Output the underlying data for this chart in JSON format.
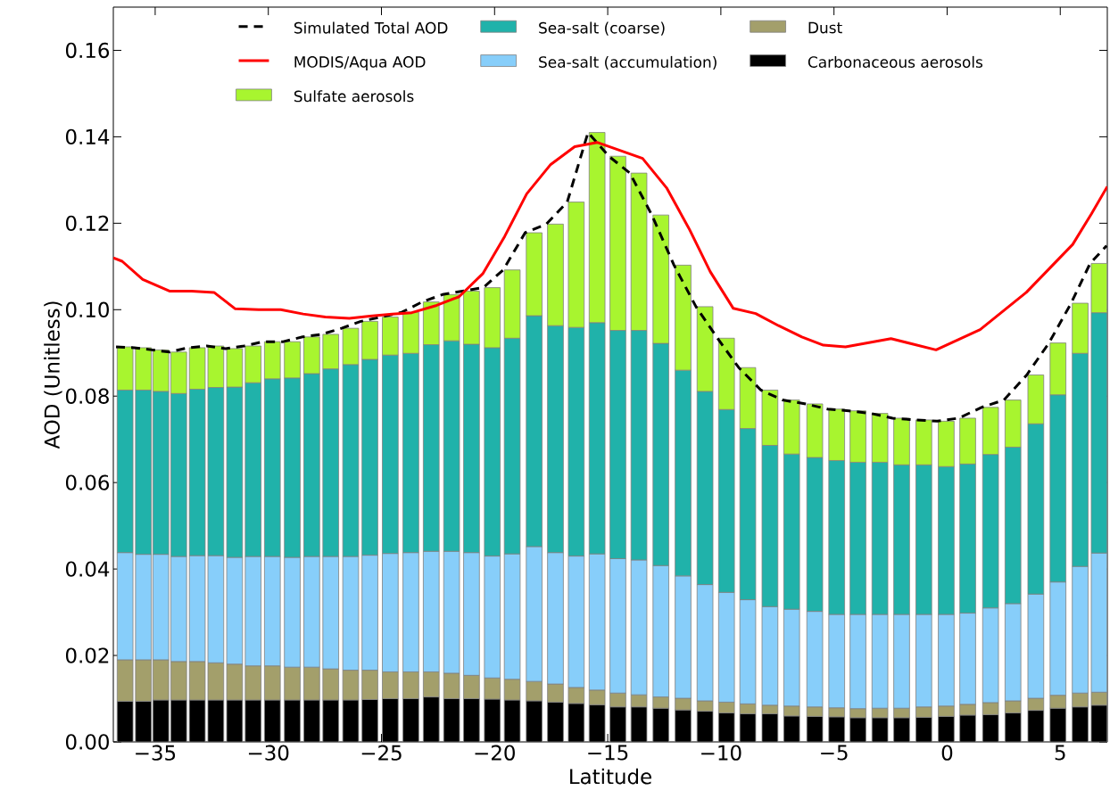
{
  "chart_data": {
    "type": "bar",
    "stacked": true,
    "xlabel": "Latitude",
    "ylabel": "AOD (Unitless)",
    "legend": "top",
    "x": [
      -36.33,
      -35.52,
      -34.75,
      -33.96,
      -33.14,
      -32.32,
      -31.49,
      -30.67,
      -29.82,
      -28.94,
      -28.08,
      -27.24,
      -26.36,
      -25.51,
      -24.61,
      -23.7,
      -22.8,
      -21.9,
      -21.02,
      -20.1,
      -19.22,
      -18.25,
      -17.31,
      -16.39,
      -15.47,
      -14.55,
      -13.62,
      -12.65,
      -11.67,
      -10.7,
      -9.75,
      -8.81,
      -7.83,
      -6.87,
      -5.85,
      -4.88,
      -3.94,
      -2.97,
      -2.01,
      -1.03,
      -0.04,
      0.91,
      1.92,
      2.91,
      3.92,
      4.9,
      5.88,
      6.72
    ],
    "xlim": [
      -36.85,
      7.08
    ],
    "xticks": [
      {
        "value": -35,
        "label": "−35"
      },
      {
        "value": -30,
        "label": "−30"
      },
      {
        "value": -25,
        "label": "−25"
      },
      {
        "value": -20,
        "label": "−20"
      },
      {
        "value": -15,
        "label": "−15"
      },
      {
        "value": -10,
        "label": "−10"
      },
      {
        "value": -5,
        "label": "−5"
      },
      {
        "value": 0,
        "label": "0"
      },
      {
        "value": 5,
        "label": "5"
      }
    ],
    "ylim": [
      0,
      0.17
    ],
    "yticks": [
      {
        "value": 0,
        "label": "0.00"
      },
      {
        "value": 0.02,
        "label": "0.02"
      },
      {
        "value": 0.04,
        "label": "0.04"
      },
      {
        "value": 0.06,
        "label": "0.06"
      },
      {
        "value": 0.08,
        "label": "0.08"
      },
      {
        "value": 0.1,
        "label": "0.10"
      },
      {
        "value": 0.12,
        "label": "0.12"
      },
      {
        "value": 0.14,
        "label": "0.14"
      },
      {
        "value": 0.16,
        "label": "0.16"
      }
    ],
    "series": [
      {
        "name": "Carbonaceous aerosols",
        "color": "#000000",
        "values": [
          0.0094,
          0.0094,
          0.0097,
          0.0097,
          0.0097,
          0.0097,
          0.0097,
          0.0097,
          0.0097,
          0.0097,
          0.0097,
          0.0097,
          0.0097,
          0.0098,
          0.01,
          0.01,
          0.0104,
          0.01,
          0.01,
          0.0099,
          0.0097,
          0.0095,
          0.0092,
          0.0089,
          0.0086,
          0.0081,
          0.0081,
          0.0078,
          0.0074,
          0.0071,
          0.0067,
          0.0065,
          0.0065,
          0.006,
          0.0059,
          0.0058,
          0.0056,
          0.0056,
          0.0056,
          0.0057,
          0.0059,
          0.0062,
          0.0063,
          0.0067,
          0.0073,
          0.0078,
          0.0081,
          0.0085
        ]
      },
      {
        "name": "Dust",
        "color": "#a39f6b",
        "values": [
          0.0096,
          0.0096,
          0.0093,
          0.0089,
          0.0089,
          0.0086,
          0.0083,
          0.0079,
          0.0079,
          0.0076,
          0.0076,
          0.0072,
          0.0069,
          0.0068,
          0.0062,
          0.0062,
          0.0058,
          0.0059,
          0.0054,
          0.0049,
          0.0048,
          0.0045,
          0.0042,
          0.0037,
          0.0034,
          0.0032,
          0.0028,
          0.0026,
          0.0027,
          0.0024,
          0.0025,
          0.0023,
          0.002,
          0.0023,
          0.0022,
          0.0021,
          0.0021,
          0.0022,
          0.0022,
          0.0024,
          0.0024,
          0.0025,
          0.0028,
          0.0028,
          0.0028,
          0.003,
          0.0032,
          0.003
        ]
      },
      {
        "name": "Sea-salt (accumulation)",
        "color": "#87cefa",
        "values": [
          0.0248,
          0.0244,
          0.0244,
          0.0243,
          0.0245,
          0.0248,
          0.0247,
          0.0253,
          0.0253,
          0.0254,
          0.0256,
          0.026,
          0.0263,
          0.0266,
          0.0274,
          0.0276,
          0.0279,
          0.0282,
          0.0284,
          0.0282,
          0.029,
          0.0312,
          0.0304,
          0.0304,
          0.0315,
          0.0311,
          0.0312,
          0.0304,
          0.0283,
          0.0269,
          0.0254,
          0.0241,
          0.0228,
          0.0224,
          0.0221,
          0.0216,
          0.0218,
          0.0217,
          0.0217,
          0.0214,
          0.0212,
          0.0211,
          0.0219,
          0.0225,
          0.0241,
          0.0262,
          0.0293,
          0.0322
        ]
      },
      {
        "name": "Sea-salt (coarse)",
        "color": "#20b2aa",
        "values": [
          0.0376,
          0.038,
          0.0377,
          0.0377,
          0.0385,
          0.0389,
          0.0394,
          0.0402,
          0.0411,
          0.0415,
          0.0423,
          0.0434,
          0.0444,
          0.0453,
          0.0459,
          0.0461,
          0.0478,
          0.0487,
          0.0482,
          0.0482,
          0.0499,
          0.0534,
          0.0525,
          0.0529,
          0.0535,
          0.0528,
          0.0531,
          0.0514,
          0.0476,
          0.0447,
          0.0423,
          0.0396,
          0.0373,
          0.0359,
          0.0356,
          0.0356,
          0.0352,
          0.0352,
          0.0346,
          0.0346,
          0.0342,
          0.0345,
          0.0355,
          0.0362,
          0.0394,
          0.0433,
          0.0493,
          0.0556
        ]
      },
      {
        "name": "Sulfate aerosols",
        "color": "#a8f52f",
        "values": [
          0.01,
          0.0098,
          0.0096,
          0.0096,
          0.0096,
          0.0096,
          0.0089,
          0.0085,
          0.0086,
          0.0084,
          0.0085,
          0.008,
          0.0084,
          0.0088,
          0.0088,
          0.0095,
          0.0099,
          0.0107,
          0.0123,
          0.0139,
          0.0158,
          0.0192,
          0.0235,
          0.029,
          0.044,
          0.0403,
          0.0364,
          0.0297,
          0.0243,
          0.0196,
          0.0165,
          0.0141,
          0.0128,
          0.0125,
          0.0124,
          0.0119,
          0.0119,
          0.0113,
          0.0108,
          0.0104,
          0.0105,
          0.0106,
          0.0109,
          0.0109,
          0.0113,
          0.012,
          0.0116,
          0.0114
        ]
      },
      {
        "name": "Simulated Total AOD",
        "type": "line",
        "line_style": "dashed",
        "color": "#000000",
        "x": [
          -36.73,
          -35.92,
          -35.15,
          -34.36,
          -33.54,
          -32.72,
          -31.89,
          -31.07,
          -30.22,
          -29.34,
          -28.48,
          -27.64,
          -26.76,
          -25.91,
          -25.01,
          -24.1,
          -23.2,
          -22.3,
          -21.42,
          -20.5,
          -19.62,
          -18.65,
          -17.71,
          -16.79,
          -15.87,
          -14.95,
          -14.02,
          -13.05,
          -12.07,
          -11.1,
          -10.15,
          -9.21,
          -8.23,
          -7.27,
          -6.25,
          -5.28,
          -4.34,
          -3.37,
          -2.41,
          -1.43,
          -0.44,
          0.51,
          1.52,
          2.51,
          3.52,
          4.5,
          5.48,
          6.32,
          7.05
        ],
        "values": [
          0.0914,
          0.0912,
          0.0907,
          0.0902,
          0.0912,
          0.0916,
          0.091,
          0.0916,
          0.0926,
          0.0926,
          0.0937,
          0.0943,
          0.0957,
          0.0973,
          0.0983,
          0.0994,
          0.1018,
          0.1035,
          0.1043,
          0.1051,
          0.1092,
          0.1178,
          0.1198,
          0.1249,
          0.141,
          0.1355,
          0.1316,
          0.1219,
          0.1103,
          0.1007,
          0.0934,
          0.0866,
          0.0814,
          0.0791,
          0.0782,
          0.077,
          0.0766,
          0.076,
          0.0749,
          0.0745,
          0.0742,
          0.0749,
          0.0774,
          0.0791,
          0.0849,
          0.0923,
          0.1015,
          0.1107,
          0.1148
        ]
      },
      {
        "name": "MODIS/Aqua AOD",
        "type": "line",
        "line_style": "solid",
        "color": "#ff0000",
        "x": [
          -36.85,
          -36.46,
          -35.55,
          -34.37,
          -33.39,
          -32.4,
          -31.46,
          -30.43,
          -29.45,
          -28.46,
          -27.48,
          -26.42,
          -25.51,
          -24.53,
          -23.66,
          -22.56,
          -21.57,
          -20.51,
          -19.55,
          -18.58,
          -17.52,
          -16.46,
          -15.47,
          -13.46,
          -12.4,
          -11.38,
          -10.47,
          -9.45,
          -8.46,
          -7.45,
          -6.42,
          -5.47,
          -4.49,
          -2.48,
          -0.49,
          1.46,
          3.5,
          5.55,
          6.38,
          7.08
        ],
        "values": [
          0.112,
          0.1112,
          0.107,
          0.1043,
          0.1043,
          0.104,
          0.1002,
          0.1,
          0.1,
          0.099,
          0.0983,
          0.098,
          0.0985,
          0.099,
          0.0993,
          0.101,
          0.103,
          0.1084,
          0.117,
          0.1268,
          0.1336,
          0.1377,
          0.1387,
          0.135,
          0.1282,
          0.1185,
          0.1088,
          0.1003,
          0.0991,
          0.0963,
          0.0937,
          0.0918,
          0.0914,
          0.0933,
          0.0907,
          0.0954,
          0.104,
          0.1151,
          0.1222,
          0.1285
        ]
      }
    ]
  }
}
